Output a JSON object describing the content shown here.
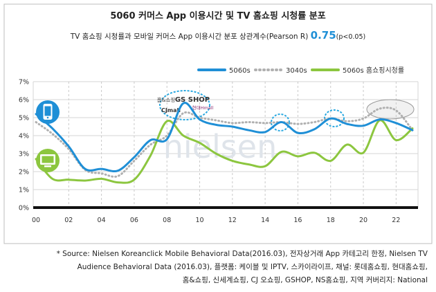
{
  "title": "5060 커머스 App 이용시간 및 TV 홈쇼핑 시청률 분포",
  "subtitle": {
    "prefix": "TV 홈쇼핑 시청률과 모바일 커머스 App 이용시간 분포 상관계수(Pearson R)",
    "value": "0.75",
    "suffix": "(p<0.05)"
  },
  "watermark": "nielsen",
  "footnote": [
    "* Source: Nielsen Koreanclick Mobile Behavioral Data(2016.03), 전자상거래 App 카테고리 한정, Nielsen TV",
    "Audience Behavioral Data (2016.03), 플랫폼: 케이블 및 IPTV, 스카이라이프, 채널: 롯데홈쇼핑, 현대홈쇼핑,",
    "홈&쇼핑, 신세계쇼핑, CJ 오쇼핑, GSHOP, NS홈쇼핑, 지역 커버리지: National"
  ],
  "logos": [
    "홈&쇼핑",
    "GS SHOP",
    "현대Hmall",
    "CJmall"
  ],
  "colors": {
    "s5060": "#1f8fd6",
    "s3040": "#b0b0b0",
    "shopping": "#8cc63f",
    "frame": "#bdbdbd"
  },
  "icons": [
    "smartphone-icon",
    "tv-icon"
  ],
  "chart_data": {
    "type": "line",
    "ylim": [
      0,
      7
    ],
    "ytick_labels": [
      "0%",
      "1%",
      "2%",
      "3%",
      "4%",
      "5%",
      "6%",
      "7%"
    ],
    "xlim": [
      0,
      23
    ],
    "xtick_labels": [
      "00",
      "02",
      "04",
      "06",
      "08",
      "10",
      "12",
      "14",
      "16",
      "18",
      "20",
      "22"
    ],
    "grid": true,
    "legend_position": "top-right",
    "x": [
      0,
      1,
      2,
      3,
      4,
      5,
      6,
      7,
      8,
      9,
      10,
      11,
      12,
      13,
      14,
      15,
      16,
      17,
      18,
      19,
      20,
      21,
      22,
      23
    ],
    "series": [
      {
        "name": "5060s",
        "style": "solid",
        "values": [
          5.2,
          4.4,
          3.4,
          2.15,
          2.15,
          2.05,
          2.8,
          3.75,
          3.8,
          5.8,
          4.9,
          4.6,
          4.5,
          4.3,
          4.2,
          4.75,
          4.15,
          4.35,
          4.95,
          4.65,
          4.55,
          4.9,
          4.7,
          4.3
        ]
      },
      {
        "name": "3040s",
        "style": "dotted",
        "values": [
          4.75,
          4.1,
          3.25,
          2.1,
          1.9,
          1.75,
          2.6,
          3.5,
          4.0,
          5.25,
          5.0,
          4.85,
          4.7,
          4.75,
          4.7,
          4.75,
          4.65,
          4.75,
          4.95,
          4.8,
          4.95,
          5.5,
          5.4,
          4.3
        ]
      },
      {
        "name": "5060s 홈쇼핑시청률",
        "style": "solid",
        "values": [
          2.7,
          1.6,
          1.55,
          1.5,
          1.6,
          1.4,
          1.55,
          2.9,
          4.8,
          4.0,
          3.6,
          3.0,
          2.6,
          2.4,
          2.3,
          3.1,
          2.85,
          3.05,
          2.6,
          3.5,
          3.05,
          4.85,
          3.75,
          4.4
        ]
      }
    ]
  }
}
